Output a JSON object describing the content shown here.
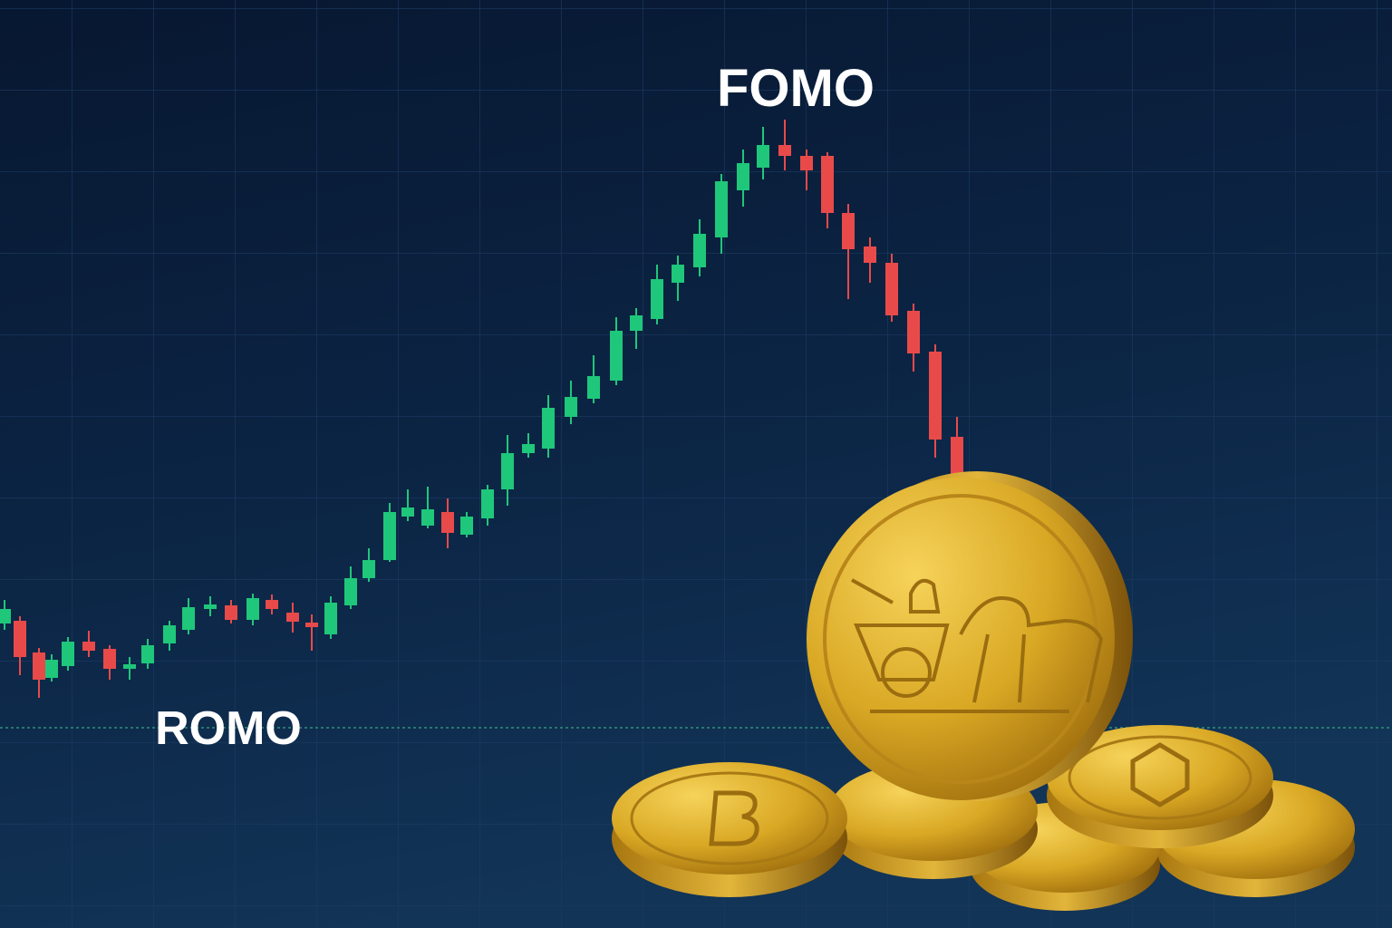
{
  "labels": {
    "peak": "FOMO",
    "trough": "ROMO"
  }
}
